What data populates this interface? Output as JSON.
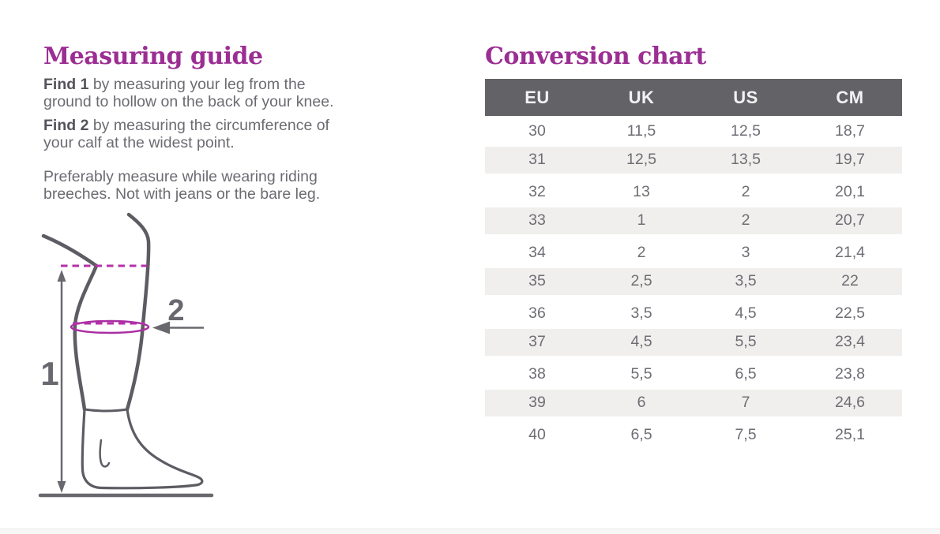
{
  "colors": {
    "title_purple": "#9b2e93",
    "measure_magenta": "#b530aa",
    "table_header_bg": "#636267",
    "table_row_alt_bg": "#f0efed",
    "body_text_gray": "#6d6b72",
    "diagram_gray": "#5e5c63"
  },
  "guide": {
    "title": "Measuring guide",
    "paragraphs": [
      {
        "bold": "Find 1",
        "line1_rest": " by measuring your leg from the",
        "line2": "ground to hollow on the back of your knee."
      },
      {
        "bold": "Find 2",
        "line1_rest": " by measuring the circumference of",
        "line2": "your calf at the widest point."
      },
      {
        "bold": "",
        "line1_rest": "Preferably measure while wearing riding",
        "line2": "breeches. Not with jeans or the bare leg."
      }
    ],
    "diagram_labels": {
      "measure1": "1",
      "measure2": "2"
    }
  },
  "chart": {
    "title": "Conversion chart",
    "columns": [
      "EU",
      "UK",
      "US",
      "CM"
    ],
    "rows": [
      [
        "30",
        "11,5",
        "12,5",
        "18,7"
      ],
      [
        "31",
        "12,5",
        "13,5",
        "19,7"
      ],
      [
        "32",
        "13",
        "2",
        "20,1"
      ],
      [
        "33",
        "1",
        "2",
        "20,7"
      ],
      [
        "34",
        "2",
        "3",
        "21,4"
      ],
      [
        "35",
        "2,5",
        "3,5",
        "22"
      ],
      [
        "36",
        "3,5",
        "4,5",
        "22,5"
      ],
      [
        "37",
        "4,5",
        "5,5",
        "23,4"
      ],
      [
        "38",
        "5,5",
        "6,5",
        "23,8"
      ],
      [
        "39",
        "6",
        "7",
        "24,6"
      ],
      [
        "40",
        "6,5",
        "7,5",
        "25,1"
      ]
    ]
  }
}
